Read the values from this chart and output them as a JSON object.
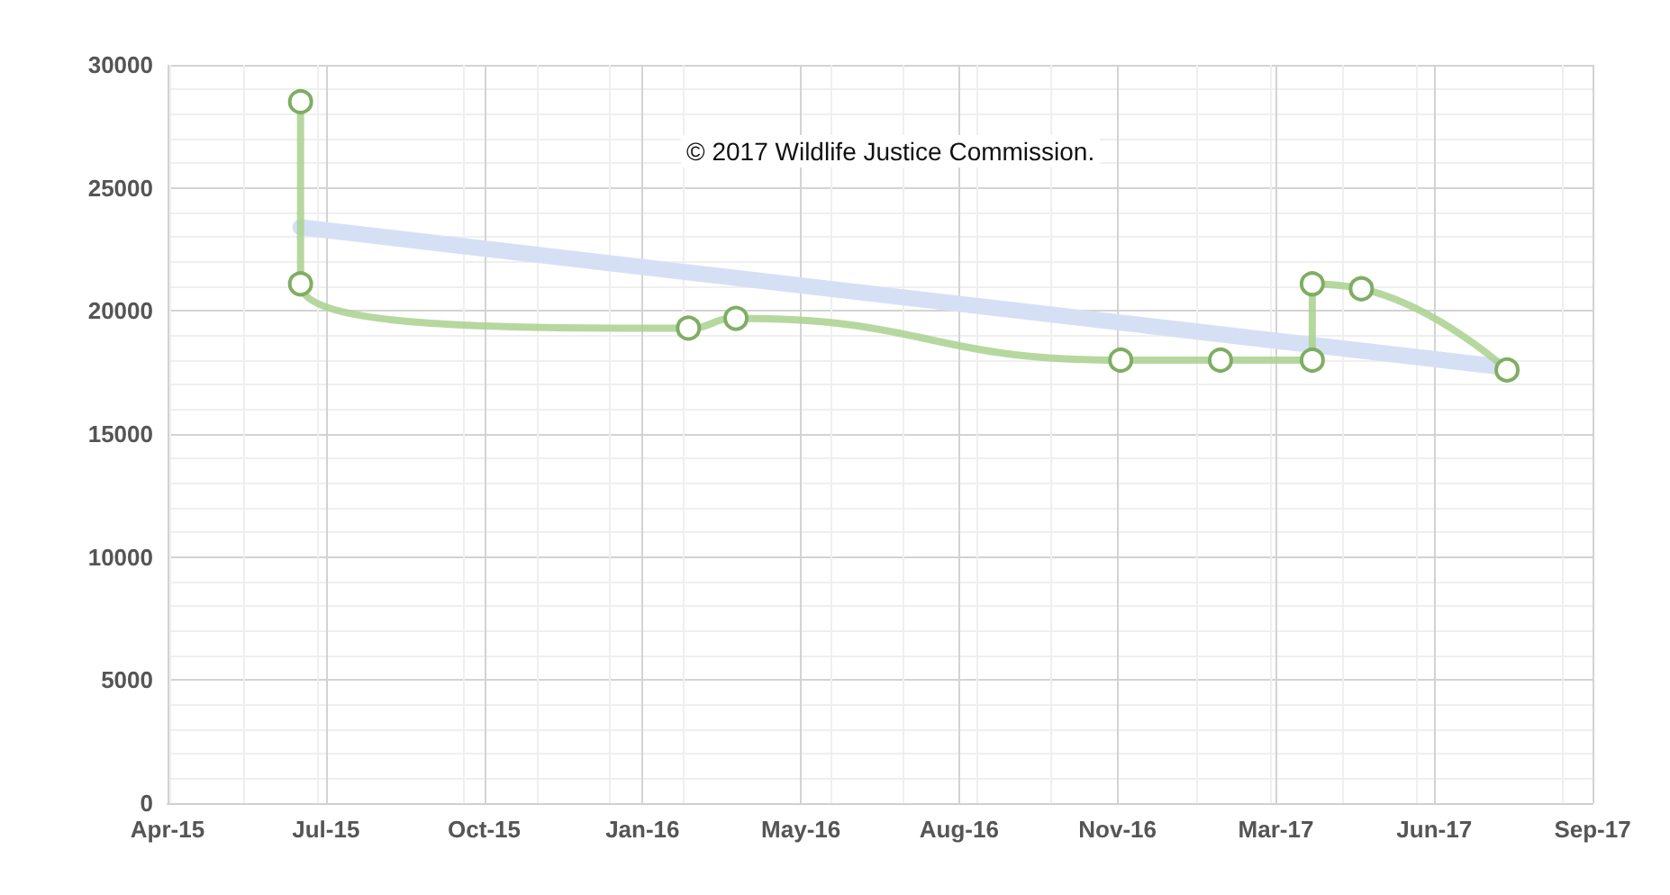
{
  "chart_data": {
    "type": "line",
    "x": [
      "2015-06-24",
      "2015-06-24",
      "2016-02-24",
      "2016-03-25",
      "2016-11-23",
      "2017-01-25",
      "2017-03-24",
      "2017-03-24",
      "2017-04-24",
      "2017-07-25"
    ],
    "series": [
      {
        "color": "#a9d18e",
        "values": [
          28500,
          21100,
          19300,
          19700,
          18000,
          18000,
          18000,
          21100,
          20900,
          17600
        ]
      },
      {
        "color": "#d6e0f5",
        "x": [
          "2015-06-24",
          "2017-07-25"
        ],
        "values": [
          23400,
          17700
        ],
        "marker": "none"
      }
    ],
    "xlim": [
      "2015-04-01",
      "2017-09-17"
    ],
    "xticks": [
      {
        "value": "2015-04-01",
        "label": "Apr-15"
      },
      {
        "value": "2015-07-10",
        "label": "Jul-15"
      },
      {
        "value": "2015-10-18",
        "label": "Oct-15"
      },
      {
        "value": "2016-01-26",
        "label": "Jan-16"
      },
      {
        "value": "2016-05-05",
        "label": "May-16"
      },
      {
        "value": "2016-08-13",
        "label": "Aug-16"
      },
      {
        "value": "2016-11-21",
        "label": "Nov-16"
      },
      {
        "value": "2017-03-01",
        "label": "Mar-17"
      },
      {
        "value": "2017-06-09",
        "label": "Jun-17"
      },
      {
        "value": "2017-09-17",
        "label": "Sep-17"
      }
    ],
    "ylim": [
      0,
      30000
    ],
    "yticks": [
      0,
      5000,
      10000,
      15000,
      20000,
      25000,
      30000
    ],
    "grid": true,
    "marker": "circle",
    "line_style": "solid",
    "annotations": [
      "© 2017 Wildlife Justice Commission."
    ]
  }
}
